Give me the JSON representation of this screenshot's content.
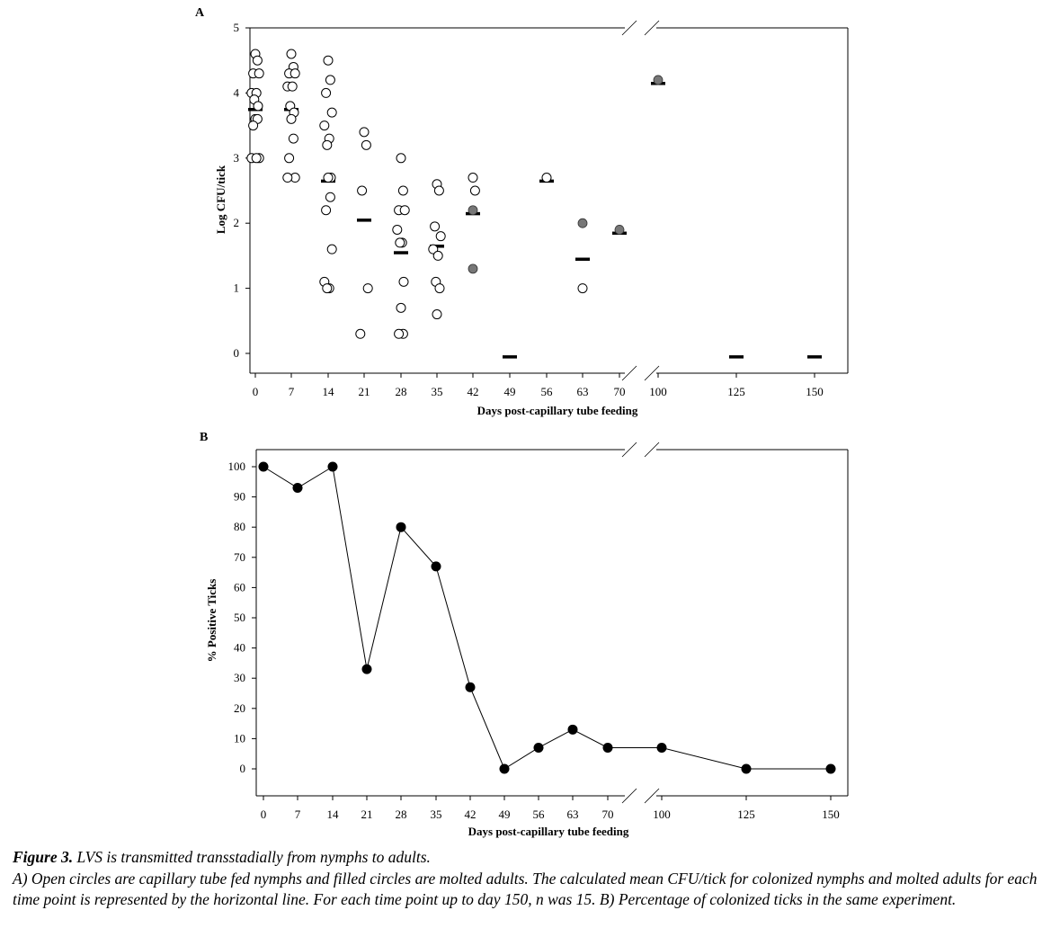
{
  "chart_data": [
    {
      "type": "scatter",
      "panel_label": "A",
      "xlabel": "Days post-capillary tube feeding",
      "ylabel": "Log CFU/tick",
      "ylim": [
        0,
        5
      ],
      "yticks": [
        0,
        1,
        2,
        3,
        4,
        5
      ],
      "x_categories": [
        "0",
        "7",
        "14",
        "21",
        "28",
        "35",
        "42",
        "49",
        "56",
        "63",
        "70",
        "100",
        "125",
        "150"
      ],
      "axis_break": "between 70 and 100",
      "series": [
        {
          "name": "Capillary tube fed nymphs (open circles)",
          "points": {
            "0": [
              4.6,
              4.5,
              4.3,
              4.3,
              4.0,
              4.0,
              3.9,
              3.8,
              3.6,
              3.6,
              3.5,
              3.0,
              3.0,
              3.0
            ],
            "7": [
              4.6,
              4.4,
              4.3,
              4.3,
              4.1,
              4.1,
              3.8,
              3.7,
              3.6,
              3.3,
              3.0,
              2.7,
              2.7
            ],
            "14": [
              4.5,
              4.2,
              4.0,
              3.7,
              3.5,
              3.3,
              3.2,
              2.7,
              2.7,
              2.4,
              2.2,
              1.6,
              1.1,
              1.0,
              1.0
            ],
            "21": [
              3.4,
              3.2,
              2.5,
              1.0,
              0.3
            ],
            "28": [
              3.0,
              2.5,
              2.2,
              2.2,
              1.9,
              1.7,
              1.7,
              1.1,
              0.7,
              0.3,
              0.3
            ],
            "35": [
              2.6,
              2.5,
              1.95,
              1.8,
              1.6,
              1.5,
              1.1,
              1.0,
              0.6
            ],
            "42": [
              2.7,
              2.5
            ],
            "56": [
              2.7
            ],
            "63": [
              1.0
            ]
          }
        },
        {
          "name": "Molted adults (filled circles)",
          "points": {
            "42": [
              2.2,
              1.3
            ],
            "63": [
              2.0
            ],
            "70": [
              1.9
            ],
            "100": [
              4.2
            ]
          }
        },
        {
          "name": "Mean CFU/tick (horizontal line)",
          "points": {
            "0": 3.75,
            "7": 3.75,
            "14": 2.65,
            "21": 2.05,
            "28": 1.55,
            "35": 1.65,
            "42": 2.15,
            "49": -0.05,
            "56": 2.65,
            "63": 1.45,
            "70": 1.85,
            "100": 4.15,
            "125": -0.05,
            "150": -0.05
          }
        }
      ]
    },
    {
      "type": "line",
      "panel_label": "B",
      "xlabel": "Days post-capillary tube feeding",
      "ylabel": "% Positive Ticks",
      "ylim": [
        0,
        100
      ],
      "yticks": [
        0,
        10,
        20,
        30,
        40,
        50,
        60,
        70,
        80,
        90,
        100
      ],
      "x_categories": [
        "0",
        "7",
        "14",
        "21",
        "28",
        "35",
        "42",
        "49",
        "56",
        "63",
        "70",
        "100",
        "125",
        "150"
      ],
      "axis_break": "between 70 and 100",
      "series": [
        {
          "name": "% Positive Ticks",
          "values": [
            100,
            93,
            100,
            33,
            80,
            67,
            27,
            0,
            7,
            13,
            7,
            7,
            0,
            0
          ]
        }
      ]
    }
  ],
  "caption": {
    "title": "Figure 3.",
    "headline": " LVS is transmitted transstadially from nymphs to adults.",
    "body": "A) Open circles are capillary tube fed nymphs and filled circles are molted adults. The calculated mean CFU/tick for colonized nymphs and molted adults for each time point is represented by the horizontal line. For each time point up to day 150, n was 15. B) Percentage of colonized ticks in the same experiment."
  }
}
